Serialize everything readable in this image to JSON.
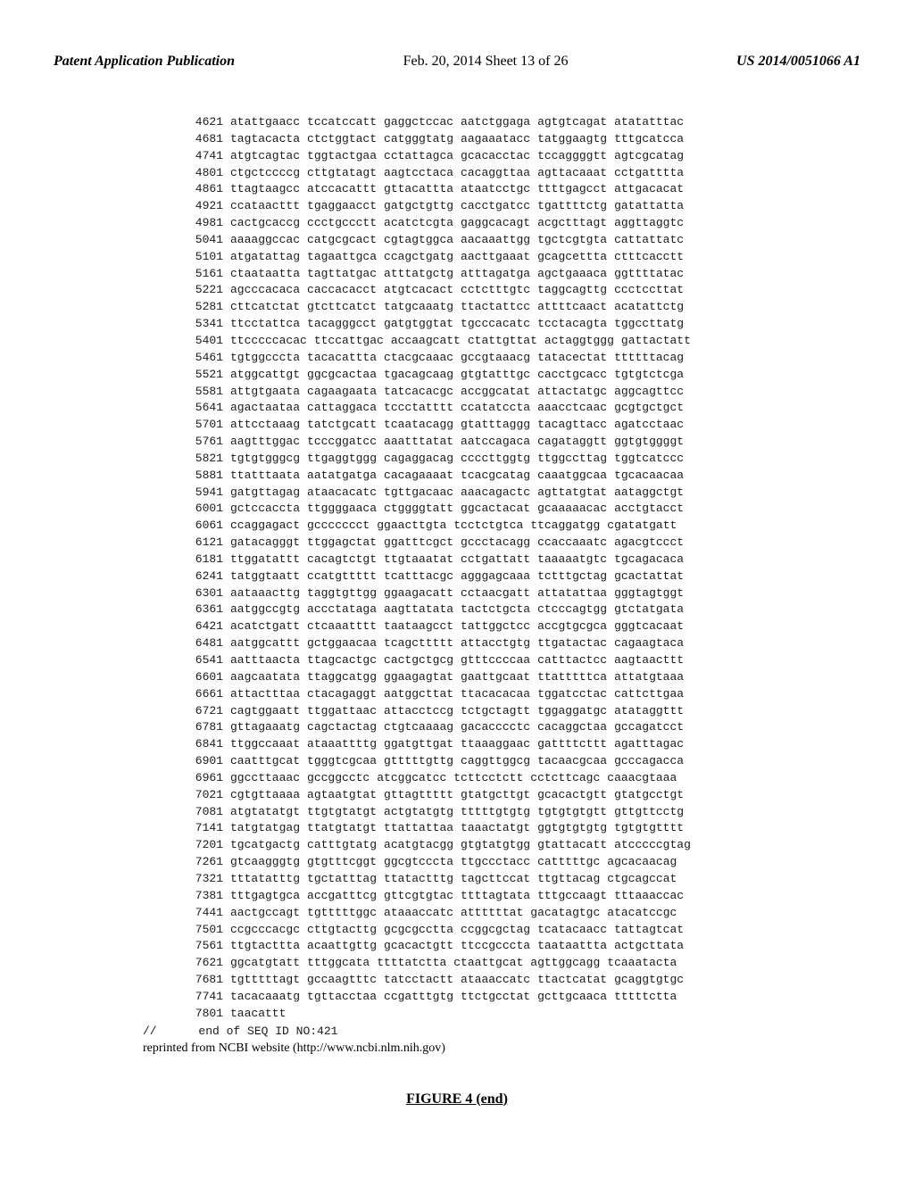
{
  "header": {
    "left": "Patent Application Publication",
    "center": "Feb. 20, 2014  Sheet 13 of 26",
    "right": "US 2014/0051066 A1"
  },
  "sequence": {
    "lines": [
      {
        "pos": 4621,
        "g": [
          "atattgaacc",
          "tccatccatt",
          "gaggctccac",
          "aatctggaga",
          "agtgtcagat",
          "atatatttac"
        ]
      },
      {
        "pos": 4681,
        "g": [
          "tagtacacta",
          "ctctggtact",
          "catgggtatg",
          "aagaaatacc",
          "tatggaagtg",
          "tttgcatcca"
        ]
      },
      {
        "pos": 4741,
        "g": [
          "atgtcagtac",
          "tggtactgaa",
          "cctattagca",
          "gcacacctac",
          "tccaggggtt",
          "agtcgcatag"
        ]
      },
      {
        "pos": 4801,
        "g": [
          "ctgctccccg",
          "cttgtatagt",
          "aagtcctaca",
          "cacaggttaa",
          "agttacaaat",
          "cctgatttta"
        ]
      },
      {
        "pos": 4861,
        "g": [
          "ttagtaagcc",
          "atccacattt",
          "gttacattta",
          "ataatcctgc",
          "ttttgagcct",
          "attgacacat"
        ]
      },
      {
        "pos": 4921,
        "g": [
          "ccataacttt",
          "tgaggaacct",
          "gatgctgttg",
          "cacctgatcc",
          "tgattttctg",
          "gatattatta"
        ]
      },
      {
        "pos": 4981,
        "g": [
          "cactgcaccg",
          "ccctgccctt",
          "acatctcgta",
          "gaggcacagt",
          "acgctttagt",
          "aggttaggtc"
        ]
      },
      {
        "pos": 5041,
        "g": [
          "aaaaggccac",
          "catgcgcact",
          "cgtagtggca",
          "aacaaattgg",
          "tgctcgtgta",
          "cattattatc"
        ]
      },
      {
        "pos": 5101,
        "g": [
          "atgatattag",
          "tagaattgca",
          "ccagctgatg",
          "aacttgaaat",
          "gcagcettta",
          "ctttcacctt"
        ]
      },
      {
        "pos": 5161,
        "g": [
          "ctaataatta",
          "tagttatgac",
          "atttatgctg",
          "atttagatga",
          "agctgaaaca",
          "ggttttatac"
        ]
      },
      {
        "pos": 5221,
        "g": [
          "agcccacaca",
          "caccacacct",
          "atgtcacact",
          "cctctttgtc",
          "taggcagttg",
          "ccctccttat"
        ]
      },
      {
        "pos": 5281,
        "g": [
          "cttcatctat",
          "gtcttcatct",
          "tatgcaaatg",
          "ttactattcc",
          "attttcaact",
          "acatattctg"
        ]
      },
      {
        "pos": 5341,
        "g": [
          "ttcctattca",
          "tacagggcct",
          "gatgtggtat",
          "tgcccacatc",
          "tcctacagta",
          "tggccttatg"
        ]
      },
      {
        "pos": 5401,
        "g": [
          "ttcccccacac",
          "ttccattgac",
          "accaagcatt",
          "ctattgttat",
          "actaggtggg",
          "gattactatt"
        ]
      },
      {
        "pos": 5461,
        "g": [
          "tgtggcccta",
          "tacacattta",
          "ctacgcaaac",
          "gccgtaaacg",
          "tatacectat",
          "ttttttacag"
        ]
      },
      {
        "pos": 5521,
        "g": [
          "atggcattgt",
          "ggcgcactaa",
          "tgacagcaag",
          "gtgtatttgc",
          "cacctgcacc",
          "tgtgtctcga"
        ]
      },
      {
        "pos": 5581,
        "g": [
          "attgtgaata",
          "cagaagaata",
          "tatcacacgc",
          "accggcatat",
          "attactatgc",
          "aggcagttcc"
        ]
      },
      {
        "pos": 5641,
        "g": [
          "agactaataa",
          "cattaggaca",
          "tccctatttt",
          "ccatatccta",
          "aaacctcaac",
          "gcgtgctgct"
        ]
      },
      {
        "pos": 5701,
        "g": [
          "attcctaaag",
          "tatctgcatt",
          "tcaatacagg",
          "gtatttaggg",
          "tacagttacc",
          "agatcctaac"
        ]
      },
      {
        "pos": 5761,
        "g": [
          "aagtttggac",
          "tcccggatcc",
          "aaatttatat",
          "aatccagaca",
          "cagataggtt",
          "ggtgtggggt"
        ]
      },
      {
        "pos": 5821,
        "g": [
          "tgtgtgggcg",
          "ttgaggtggg",
          "cagaggacag",
          "ccccttggtg",
          "ttggccttag",
          "tggtcatccc"
        ]
      },
      {
        "pos": 5881,
        "g": [
          "ttatttaata",
          "aatatgatga",
          "cacagaaaat",
          "tcacgcatag",
          "caaatggcaa",
          "tgcacaacaa"
        ]
      },
      {
        "pos": 5941,
        "g": [
          "gatgttagag",
          "ataacacatc",
          "tgttgacaac",
          "aaacagactc",
          "agttatgtat",
          "aataggctgt"
        ]
      },
      {
        "pos": 6001,
        "g": [
          "gctccaccta",
          "ttggggaaca",
          "ctggggtatt",
          "ggcactacat",
          "gcaaaaacac",
          "acctgtacct"
        ]
      },
      {
        "pos": 6061,
        "g": [
          "ccaggagact",
          "gccccccct",
          "ggaacttgta",
          "tcctctgtca",
          "ttcaggatgg",
          "cgatatgatt"
        ]
      },
      {
        "pos": 6121,
        "g": [
          "gatacagggt",
          "ttggagctat",
          "ggatttcgct",
          "gccctacagg",
          "ccaccaaatc",
          "agacgtccct"
        ]
      },
      {
        "pos": 6181,
        "g": [
          "ttggatattt",
          "cacagtctgt",
          "ttgtaaatat",
          "cctgattatt",
          "taaaaatgtc",
          "tgcagacaca"
        ]
      },
      {
        "pos": 6241,
        "g": [
          "tatggtaatt",
          "ccatgttttt",
          "tcatttacgc",
          "agggagcaaa",
          "tctttgctag",
          "gcactattat"
        ]
      },
      {
        "pos": 6301,
        "g": [
          "aataaacttg",
          "taggtgttgg",
          "ggaagacatt",
          "cctaacgatt",
          "attatattaa",
          "gggtagtggt"
        ]
      },
      {
        "pos": 6361,
        "g": [
          "aatggccgtg",
          "accctataga",
          "aagttatata",
          "tactctgcta",
          "ctcccagtgg",
          "gtctatgata"
        ]
      },
      {
        "pos": 6421,
        "g": [
          "acatctgatt",
          "ctcaaatttt",
          "taataagcct",
          "tattggctcc",
          "accgtgcgca",
          "gggtcacaat"
        ]
      },
      {
        "pos": 6481,
        "g": [
          "aatggcattt",
          "gctggaacaa",
          "tcagcttttt",
          "attacctgtg",
          "ttgatactac",
          "cagaagtaca"
        ]
      },
      {
        "pos": 6541,
        "g": [
          "aatttaacta",
          "ttagcactgc",
          "cactgctgcg",
          "gtttccccaa",
          "catttactcc",
          "aagtaacttt"
        ]
      },
      {
        "pos": 6601,
        "g": [
          "aagcaatata",
          "ttaggcatgg",
          "ggaagagtat",
          "gaattgcaat",
          "ttatttttca",
          "attatgtaaa"
        ]
      },
      {
        "pos": 6661,
        "g": [
          "attactttaa",
          "ctacagaggt",
          "aatggcttat",
          "ttacacacaa",
          "tggatcctac",
          "cattcttgaa"
        ]
      },
      {
        "pos": 6721,
        "g": [
          "cagtggaatt",
          "ttggattaac",
          "attacctccg",
          "tctgctagtt",
          "tggaggatgc",
          "atataggttt"
        ]
      },
      {
        "pos": 6781,
        "g": [
          "gttagaaatg",
          "cagctactag",
          "ctgtcaaaag",
          "gacacccctc",
          "cacaggctaa",
          "gccagatcct"
        ]
      },
      {
        "pos": 6841,
        "g": [
          "ttggccaaat",
          "ataaattttg",
          "ggatgttgat",
          "ttaaaggaac",
          "gattttcttt",
          "agatttagac"
        ]
      },
      {
        "pos": 6901,
        "g": [
          "caatttgcat",
          "tgggtcgcaa",
          "gtttttgttg",
          "caggttggcg",
          "tacaacgcaa",
          "gcccagacca"
        ]
      },
      {
        "pos": 6961,
        "g": [
          "ggccttaaac",
          "gccggcctc",
          "atcggcatcc",
          "tcttcctctt",
          "cctcttcagc",
          "caaacgtaaa"
        ]
      },
      {
        "pos": 7021,
        "g": [
          "cgtgttaaaa",
          "agtaatgtat",
          "gttagttttt",
          "gtatgcttgt",
          "gcacactgtt",
          "gtatgcctgt"
        ]
      },
      {
        "pos": 7081,
        "g": [
          "atgtatatgt",
          "ttgtgtatgt",
          "actgtatgtg",
          "tttttgtgtg",
          "tgtgtgtgtt",
          "gttgttcctg"
        ]
      },
      {
        "pos": 7141,
        "g": [
          "tatgtatgag",
          "ttatgtatgt",
          "ttattattaa",
          "taaactatgt",
          "ggtgtgtgtg",
          "tgtgtgtttt"
        ]
      },
      {
        "pos": 7201,
        "g": [
          "tgcatgactg",
          "catttgtatg",
          "acatgtacgg",
          "gtgtatgtgg",
          "gtattacatt",
          "atcccccgtag"
        ]
      },
      {
        "pos": 7261,
        "g": [
          "gtcaagggtg",
          "gtgtttcggt",
          "ggcgtcccta",
          "ttgccctacc",
          "catttttgc",
          "agcacaacag"
        ]
      },
      {
        "pos": 7321,
        "g": [
          "tttatatttg",
          "tgctatttag",
          "ttatactttg",
          "tagcttccat",
          "ttgttacag",
          "ctgcagccat"
        ]
      },
      {
        "pos": 7381,
        "g": [
          "tttgagtgca",
          "accgatttcg",
          "gttcgtgtac",
          "ttttagtata",
          "tttgccaagt",
          "tttaaaccac"
        ]
      },
      {
        "pos": 7441,
        "g": [
          "aactgccagt",
          "tgtttttggc",
          "ataaaccatc",
          "attttttat",
          "gacatagtgc",
          "atacatccgc"
        ]
      },
      {
        "pos": 7501,
        "g": [
          "ccgcccacgc",
          "cttgtacttg",
          "gcgcgcctta",
          "ccggcgctag",
          "tcatacaacc",
          "tattagtcat"
        ]
      },
      {
        "pos": 7561,
        "g": [
          "ttgtacttta",
          "acaattgttg",
          "gcacactgtt",
          "ttccgcccta",
          "taataattta",
          "actgcttata"
        ]
      },
      {
        "pos": 7621,
        "g": [
          "ggcatgtatt",
          "tttggcata",
          "ttttatctta",
          "ctaattgcat",
          "agttggcagg",
          "tcaaatacta"
        ]
      },
      {
        "pos": 7681,
        "g": [
          "tgtttttagt",
          "gccaagtttc",
          "tatcctactt",
          "ataaaccatc",
          "ttactcatat",
          "gcaggtgtgc"
        ]
      },
      {
        "pos": 7741,
        "g": [
          "tacacaaatg",
          "tgttacctaa",
          "ccgatttgtg",
          "ttctgcctat",
          "gcttgcaaca",
          "tttttctta"
        ]
      },
      {
        "pos": 7801,
        "g": [
          "taacattt",
          "",
          "",
          "",
          "",
          ""
        ]
      }
    ]
  },
  "footer": {
    "slashes": "//",
    "end_label": "end of SEQ ID NO:421",
    "note": "reprinted from NCBI website (http://www.ncbi.nlm.nih.gov)"
  },
  "figure": {
    "label": "FIGURE 4 (end)"
  }
}
